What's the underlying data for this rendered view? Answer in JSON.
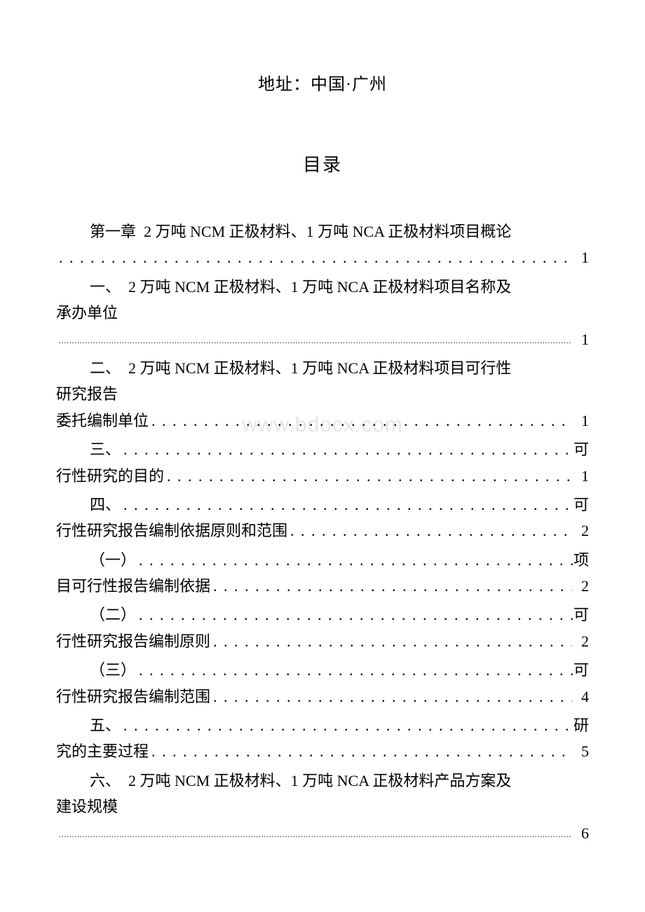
{
  "address": "地址：中国·广州",
  "toc_title": "目录",
  "watermark": "www.bdocx.com",
  "entries": {
    "chapter1": {
      "label": "第一章",
      "text": "2 万吨 NCM 正极材料、1 万吨 NCA 正极材料项目概论",
      "page": "1"
    },
    "item1": {
      "label": "一、",
      "text": "2 万吨 NCM 正极材料、1 万吨 NCA 正极材料项目名称及",
      "text_cont": "承办单位",
      "page": "1"
    },
    "item2": {
      "label": "二、",
      "text": "2 万吨 NCM 正极材料、1 万吨 NCA 正极材料项目可行性",
      "text_cont": "研究报告",
      "text_cont2": "委托编制单位",
      "page": "1"
    },
    "item3": {
      "label": "三、",
      "suffix": "可",
      "text_cont": "行性研究的目的",
      "page": "1"
    },
    "item4": {
      "label": "四、",
      "suffix": "可",
      "text_cont": "行性研究报告编制依据原则和范围",
      "page": "2"
    },
    "sub1": {
      "label": "（一）",
      "suffix": "项",
      "text_cont": "目可行性报告编制依据",
      "page": "2"
    },
    "sub2": {
      "label": "（二）",
      "suffix": "可",
      "text_cont": "行性研究报告编制原则",
      "page": "2"
    },
    "sub3": {
      "label": "（三）",
      "suffix": "可",
      "text_cont": "行性研究报告编制范围",
      "page": "4"
    },
    "item5": {
      "label": "五、",
      "suffix": "研",
      "text_cont": "究的主要过程",
      "page": "5"
    },
    "item6": {
      "label": "六、",
      "text": "2 万吨 NCM 正极材料、1 万吨 NCA 正极材料产品方案及",
      "text_cont": "建设规模",
      "page": "6"
    }
  },
  "dots_large": ". . . . . . . . . . . . . . . . . . . . . . . . . . . . . . . . . . . . . . . . . . . . . . . . . . . . . . . . . . . . . . . . . . . . . . . . . . . . . . . . . . . . . . . . . . . . . . . . .",
  "dots_small": "..........................................................................................................................................................................................................................................................."
}
